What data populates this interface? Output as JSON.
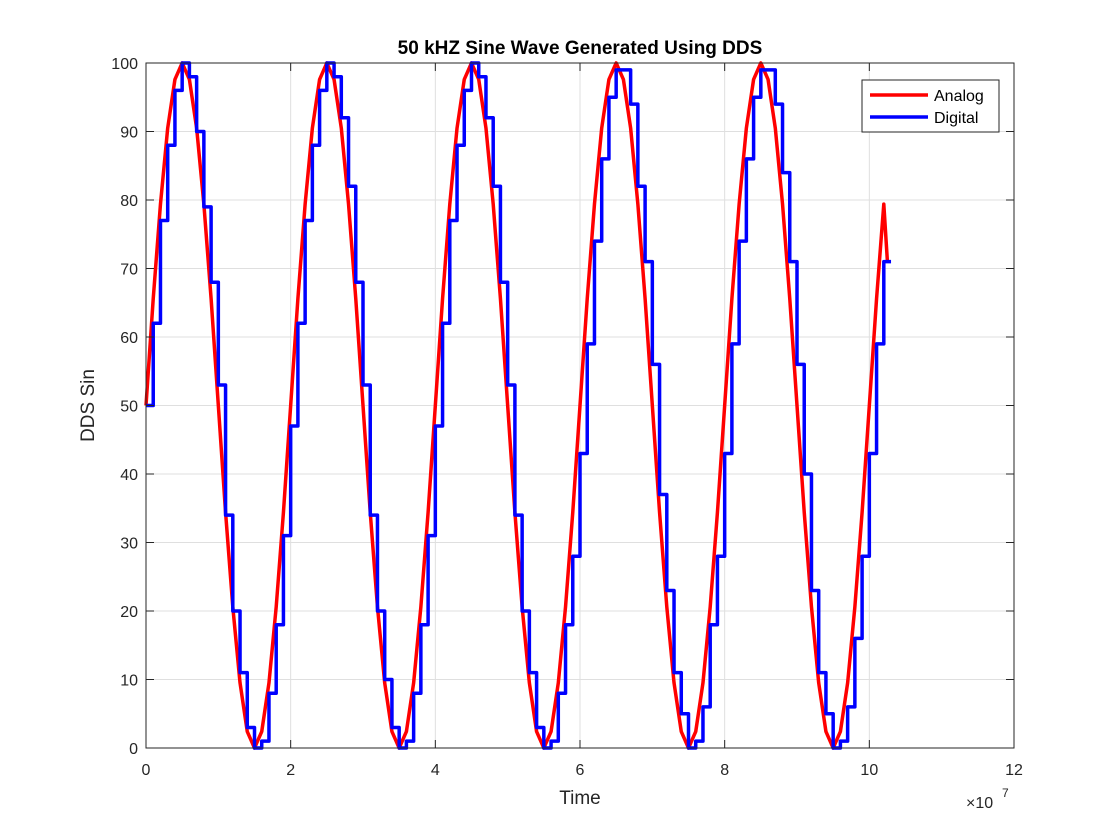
{
  "chart_data": {
    "type": "line",
    "title": "50 kHZ Sine Wave Generated Using DDS",
    "xlabel": "Time",
    "ylabel": "DDS Sin",
    "x_exponent_label": "×10",
    "x_exponent": "7",
    "xlim": [
      0,
      12
    ],
    "ylim": [
      0,
      100
    ],
    "xticks": [
      0,
      2,
      4,
      6,
      8,
      10,
      12
    ],
    "yticks": [
      0,
      10,
      20,
      30,
      40,
      50,
      60,
      70,
      80,
      90,
      100
    ],
    "grid": true,
    "legend_position": "top-right",
    "series": [
      {
        "name": "Analog",
        "color": "#ff0000",
        "style": "smooth",
        "x": [
          0.0,
          0.1,
          0.2,
          0.3,
          0.4,
          0.5,
          0.6,
          0.7,
          0.8,
          0.9,
          1.0,
          1.1,
          1.2,
          1.3,
          1.4,
          1.5,
          1.6,
          1.7,
          1.8,
          1.9,
          2.0,
          2.1,
          2.2,
          2.3,
          2.4,
          2.5,
          2.6,
          2.7,
          2.8,
          2.9,
          3.0,
          3.1,
          3.2,
          3.3,
          3.4,
          3.5,
          3.6,
          3.7,
          3.8,
          3.9,
          4.0,
          4.1,
          4.2,
          4.3,
          4.4,
          4.5,
          4.6,
          4.7,
          4.8,
          4.9,
          5.0,
          5.1,
          5.2,
          5.3,
          5.4,
          5.5,
          5.6,
          5.7,
          5.8,
          5.9,
          6.0,
          6.1,
          6.2,
          6.3,
          6.4,
          6.5,
          6.6,
          6.7,
          6.8,
          6.9,
          7.0,
          7.1,
          7.2,
          7.3,
          7.4,
          7.5,
          7.6,
          7.7,
          7.8,
          7.9,
          8.0,
          8.1,
          8.2,
          8.3,
          8.4,
          8.5,
          8.6,
          8.7,
          8.8,
          8.9,
          9.0,
          9.1,
          9.2,
          9.3,
          9.4,
          9.5,
          9.6,
          9.7,
          9.8,
          9.9,
          10.0,
          10.1,
          10.2,
          10.25
        ],
        "values": [
          50,
          65.6,
          79.4,
          90.5,
          97.6,
          100,
          97.6,
          90.5,
          79.4,
          65.6,
          50,
          34.4,
          20.6,
          9.5,
          2.4,
          0,
          2.4,
          9.5,
          20.6,
          34.4,
          50,
          65.6,
          79.4,
          90.5,
          97.6,
          100,
          97.6,
          90.5,
          79.4,
          65.6,
          50,
          34.4,
          20.6,
          9.5,
          2.4,
          0,
          2.4,
          9.5,
          20.6,
          34.4,
          50,
          65.6,
          79.4,
          90.5,
          97.6,
          100,
          97.6,
          90.5,
          79.4,
          65.6,
          50,
          34.4,
          20.6,
          9.5,
          2.4,
          0,
          2.4,
          9.5,
          20.6,
          34.4,
          50,
          65.6,
          79.4,
          90.5,
          97.6,
          100,
          97.6,
          90.5,
          79.4,
          65.6,
          50,
          34.4,
          20.6,
          9.5,
          2.4,
          0,
          2.4,
          9.5,
          20.6,
          34.4,
          50,
          65.6,
          79.4,
          90.5,
          97.6,
          100,
          97.6,
          90.5,
          79.4,
          65.6,
          50,
          34.4,
          20.6,
          9.5,
          2.4,
          0,
          2.4,
          9.5,
          20.6,
          34.4,
          50,
          65.6,
          79.4,
          71
        ]
      },
      {
        "name": "Digital",
        "color": "#0000ff",
        "style": "stairs",
        "x": [
          0.0,
          0.1,
          0.2,
          0.3,
          0.4,
          0.5,
          0.6,
          0.7,
          0.8,
          0.9,
          1.0,
          1.1,
          1.2,
          1.3,
          1.4,
          1.5,
          1.6,
          1.7,
          1.8,
          1.9,
          2.0,
          2.1,
          2.2,
          2.3,
          2.4,
          2.5,
          2.6,
          2.7,
          2.8,
          2.9,
          3.0,
          3.1,
          3.2,
          3.3,
          3.4,
          3.5,
          3.6,
          3.7,
          3.8,
          3.9,
          4.0,
          4.1,
          4.2,
          4.3,
          4.4,
          4.5,
          4.6,
          4.7,
          4.8,
          4.9,
          5.0,
          5.1,
          5.2,
          5.3,
          5.4,
          5.5,
          5.6,
          5.7,
          5.8,
          5.9,
          6.0,
          6.1,
          6.2,
          6.3,
          6.4,
          6.5,
          6.6,
          6.7,
          6.8,
          6.9,
          7.0,
          7.1,
          7.2,
          7.3,
          7.4,
          7.5,
          7.6,
          7.7,
          7.8,
          7.9,
          8.0,
          8.1,
          8.2,
          8.3,
          8.4,
          8.5,
          8.6,
          8.7,
          8.8,
          8.9,
          9.0,
          9.1,
          9.2,
          9.3,
          9.4,
          9.5,
          9.6,
          9.7,
          9.8,
          9.9,
          10.0,
          10.1,
          10.2
        ],
        "values": [
          50,
          62,
          77,
          88,
          96,
          100,
          98,
          90,
          79,
          68,
          53,
          34,
          20,
          11,
          3,
          0,
          1,
          8,
          18,
          31,
          47,
          62,
          77,
          88,
          96,
          100,
          98,
          92,
          82,
          68,
          53,
          34,
          20,
          10,
          3,
          0,
          1,
          8,
          18,
          31,
          47,
          62,
          77,
          88,
          96,
          100,
          98,
          92,
          82,
          68,
          53,
          34,
          20,
          11,
          3,
          0,
          1,
          8,
          18,
          28,
          43,
          59,
          74,
          86,
          95,
          99,
          99,
          94,
          82,
          71,
          56,
          37,
          23,
          11,
          5,
          0,
          1,
          6,
          18,
          28,
          43,
          59,
          74,
          86,
          95,
          99,
          99,
          94,
          84,
          71,
          56,
          40,
          23,
          11,
          5,
          0,
          1,
          6,
          16,
          28,
          43,
          59,
          71
        ]
      }
    ]
  }
}
